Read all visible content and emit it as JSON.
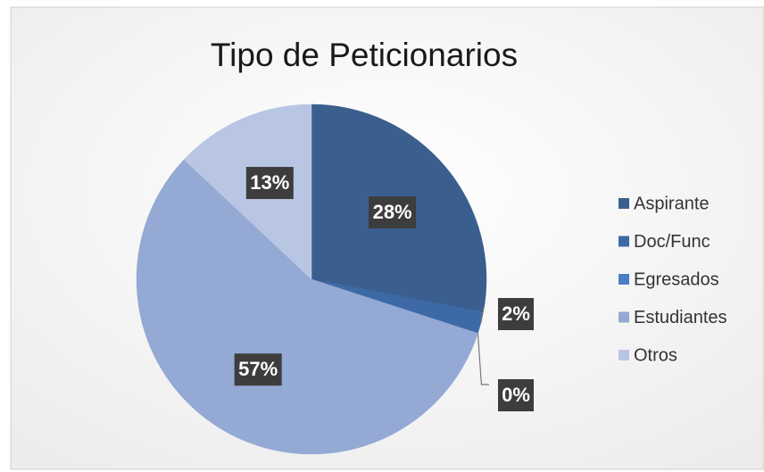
{
  "chart_data": {
    "type": "pie",
    "title": "Tipo de Peticionarios",
    "categories": [
      "Aspirante",
      "Doc/Func",
      "Egresados",
      "Estudiantes",
      "Otros"
    ],
    "values": [
      28,
      2,
      0,
      57,
      13
    ],
    "value_labels": [
      "28%",
      "2%",
      "0%",
      "57%",
      "13%"
    ],
    "colors": [
      "#3a5f8e",
      "#3d6aa6",
      "#4a7fc4",
      "#94a9d3",
      "#b9c6e3"
    ],
    "legend": "right"
  }
}
